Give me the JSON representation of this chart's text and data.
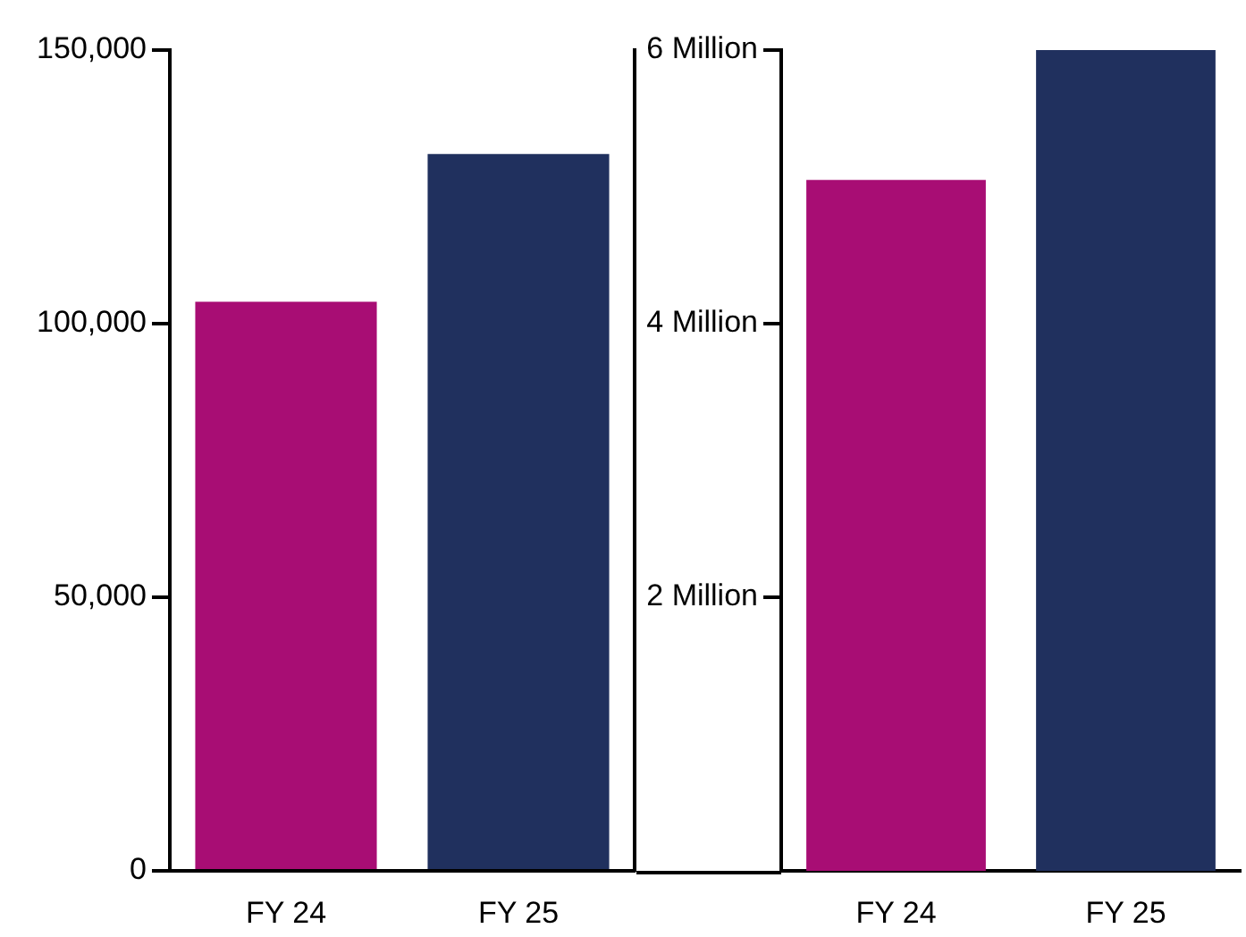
{
  "chart_data": [
    {
      "type": "bar",
      "categories": [
        "FY 24",
        "FY 25"
      ],
      "values": [
        104000,
        131000
      ],
      "colors": [
        "#a80d74",
        "#20305e"
      ],
      "ylim": [
        0,
        150000
      ],
      "yticks": [
        0,
        {
          "value": 50000,
          "label": "50,000"
        },
        {
          "value": 100000,
          "label": "100,000"
        },
        {
          "value": 150000,
          "label": "150,000"
        }
      ]
    },
    {
      "type": "bar",
      "categories": [
        "FY 24",
        "FY 25"
      ],
      "values": [
        5.05,
        6.0
      ],
      "colors": [
        "#a80d74",
        "#20305e"
      ],
      "ylim": [
        0,
        6
      ],
      "yticks": [
        {
          "value": 2,
          "label": "2 Million"
        },
        {
          "value": 4,
          "label": "4 Million"
        },
        {
          "value": 6,
          "label": "6 Million"
        }
      ]
    }
  ]
}
